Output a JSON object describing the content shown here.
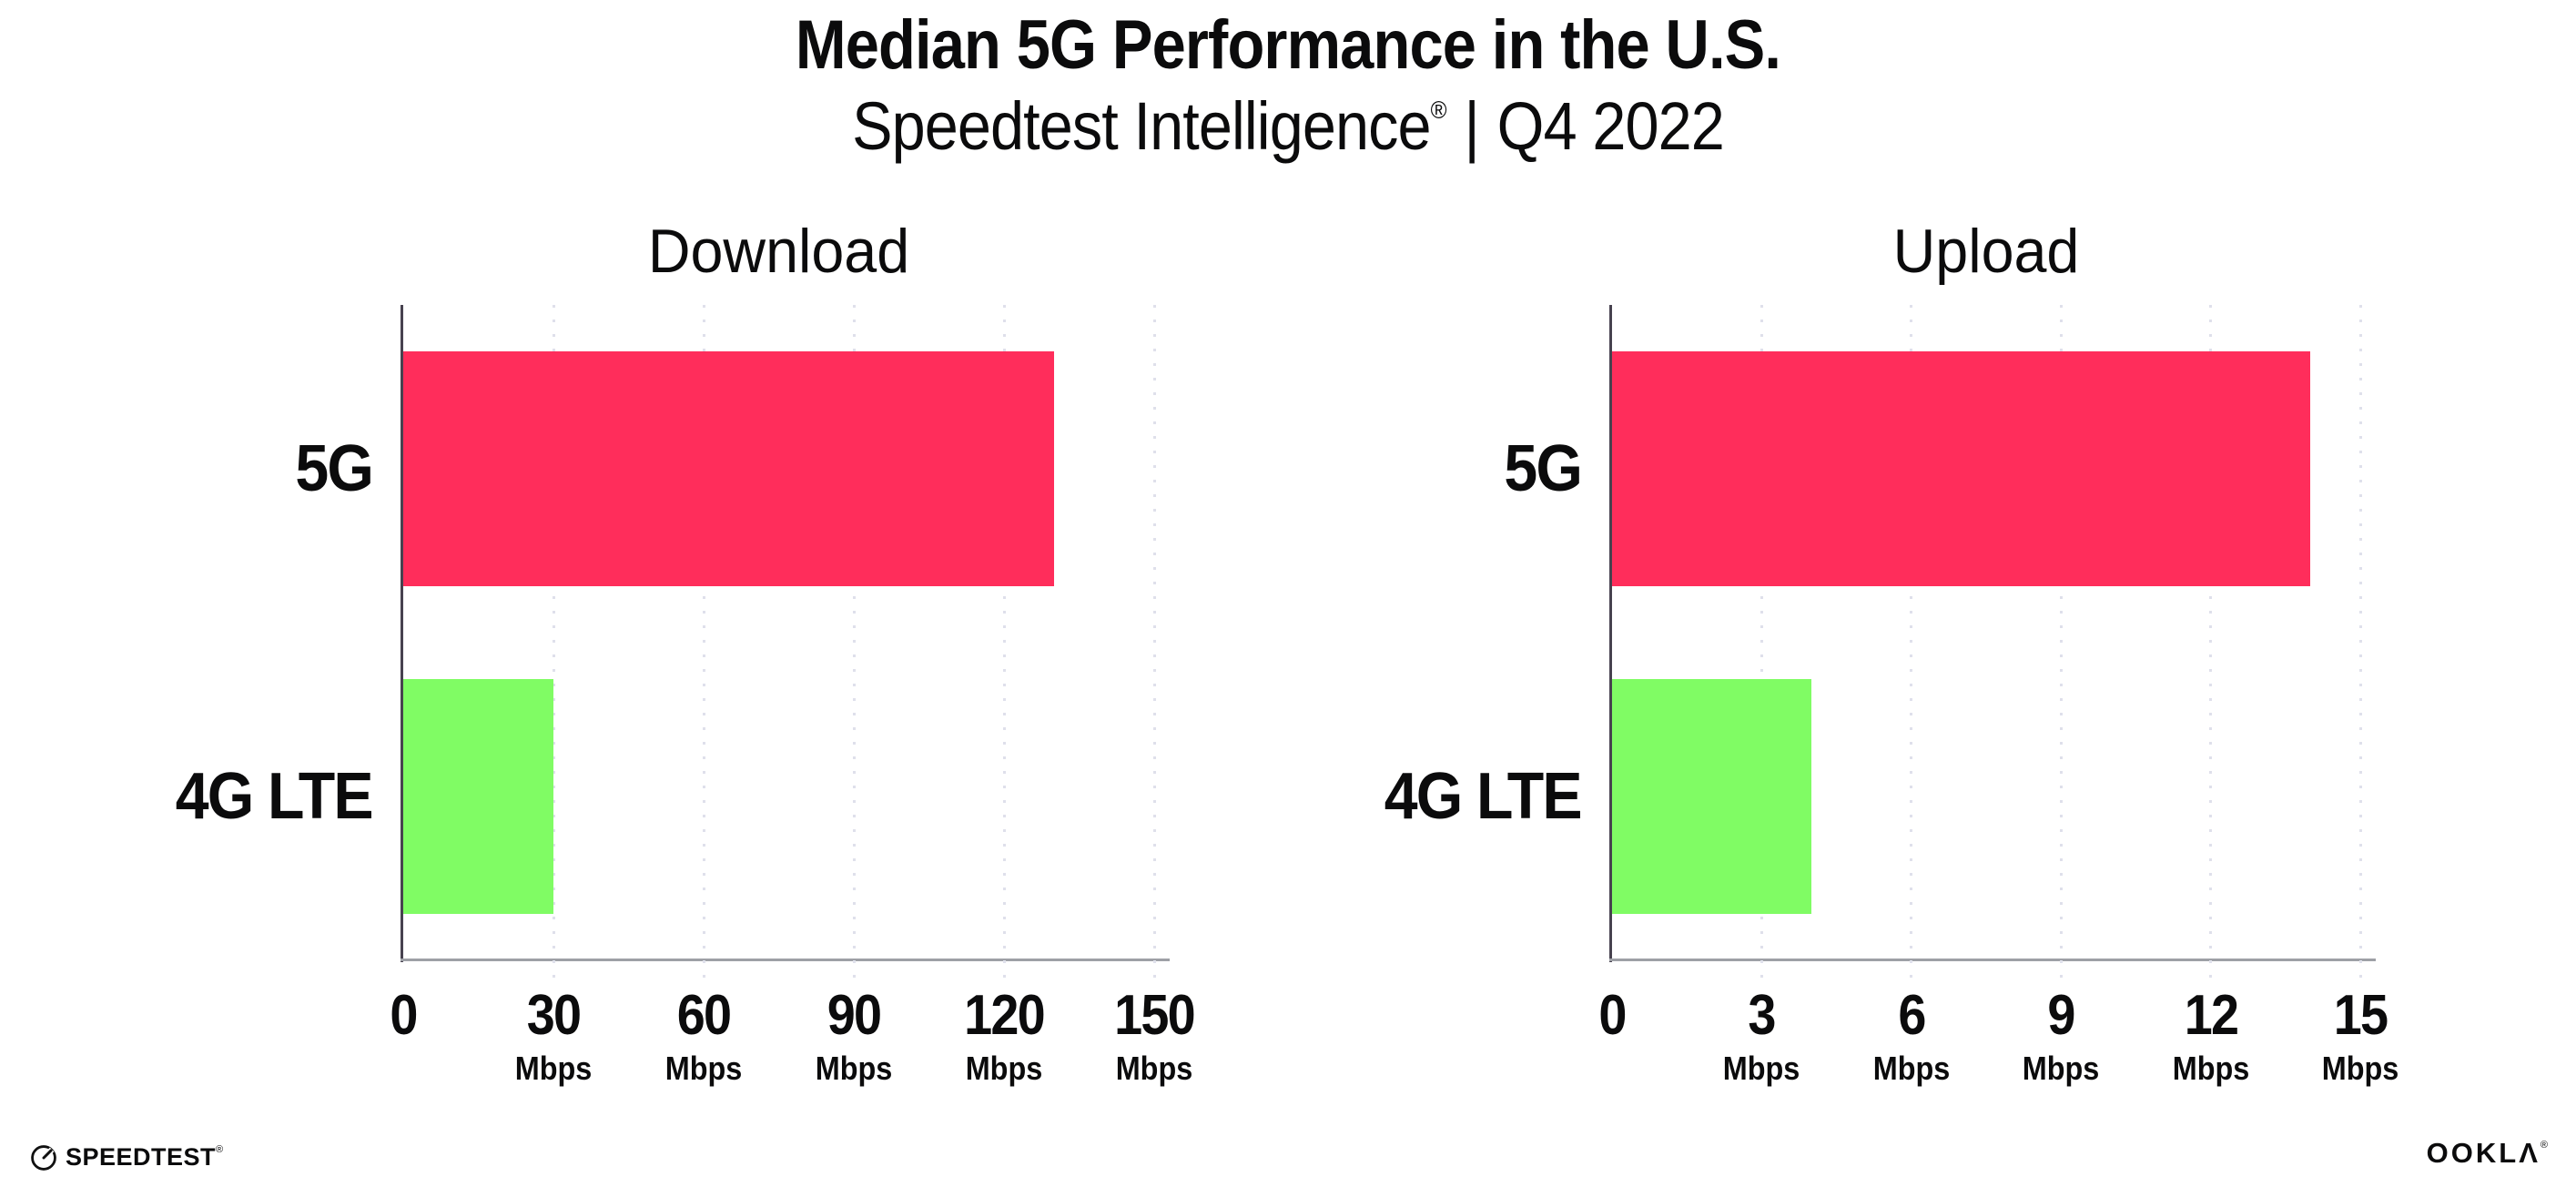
{
  "header": {
    "title": "Median 5G Performance in the U.S.",
    "subtitle_brand": "Speedtest Intelligence",
    "subtitle_registered": "®",
    "subtitle_divider": "|",
    "subtitle_period": "Q4 2022"
  },
  "chart_data": [
    {
      "type": "bar",
      "orientation": "horizontal",
      "title": "Download",
      "categories": [
        "5G",
        "4G LTE"
      ],
      "values": [
        130,
        30
      ],
      "unit": "Mbps",
      "xlim": [
        0,
        150
      ],
      "xticks": [
        0,
        30,
        60,
        90,
        120,
        150
      ],
      "bar_colors": [
        "#FF2D5B",
        "#80FC64"
      ],
      "grid": "vertical dotted",
      "legend": "none"
    },
    {
      "type": "bar",
      "orientation": "horizontal",
      "title": "Upload",
      "categories": [
        "5G",
        "4G LTE"
      ],
      "values": [
        14,
        4
      ],
      "unit": "Mbps",
      "xlim": [
        0,
        15
      ],
      "xticks": [
        0,
        3,
        6,
        9,
        12,
        15
      ],
      "bar_colors": [
        "#FF2D5B",
        "#80FC64"
      ],
      "grid": "vertical dotted",
      "legend": "none"
    }
  ],
  "footer": {
    "speedtest_label": "SPEEDTEST",
    "speedtest_mark": "®",
    "speedtest_icon": "gauge-icon",
    "ookla_label": "OOKLΛ",
    "ookla_mark": "®"
  },
  "colors": {
    "bar_5g": "#FF2D5B",
    "bar_4g_lte": "#80FC64",
    "gridline": "#DFE0EB",
    "y_axis": "#47424F",
    "x_axis": "#9EA0A6",
    "text": "#0B0B0C",
    "background": "#FFFFFF"
  }
}
